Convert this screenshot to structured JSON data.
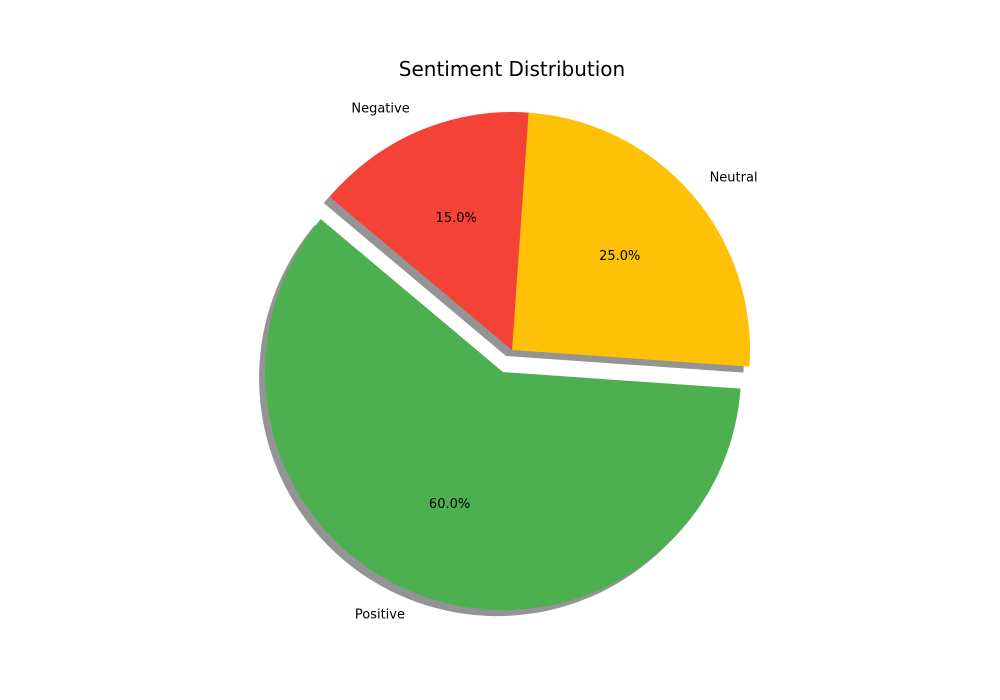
{
  "chart_data": {
    "type": "pie",
    "title": "Sentiment Distribution",
    "slices": [
      {
        "label": "Positive",
        "value": 60.0,
        "pct_label": "60.0%",
        "color": "#4caf50",
        "explode": 0.1
      },
      {
        "label": "Neutral",
        "value": 25.0,
        "pct_label": "25.0%",
        "color": "#ffc107",
        "explode": 0
      },
      {
        "label": "Negative",
        "value": 15.0,
        "pct_label": "15.0%",
        "color": "#f44336",
        "explode": 0
      }
    ],
    "start_angle": 140,
    "counterclockwise": true,
    "shadow": true,
    "legend": "none"
  }
}
